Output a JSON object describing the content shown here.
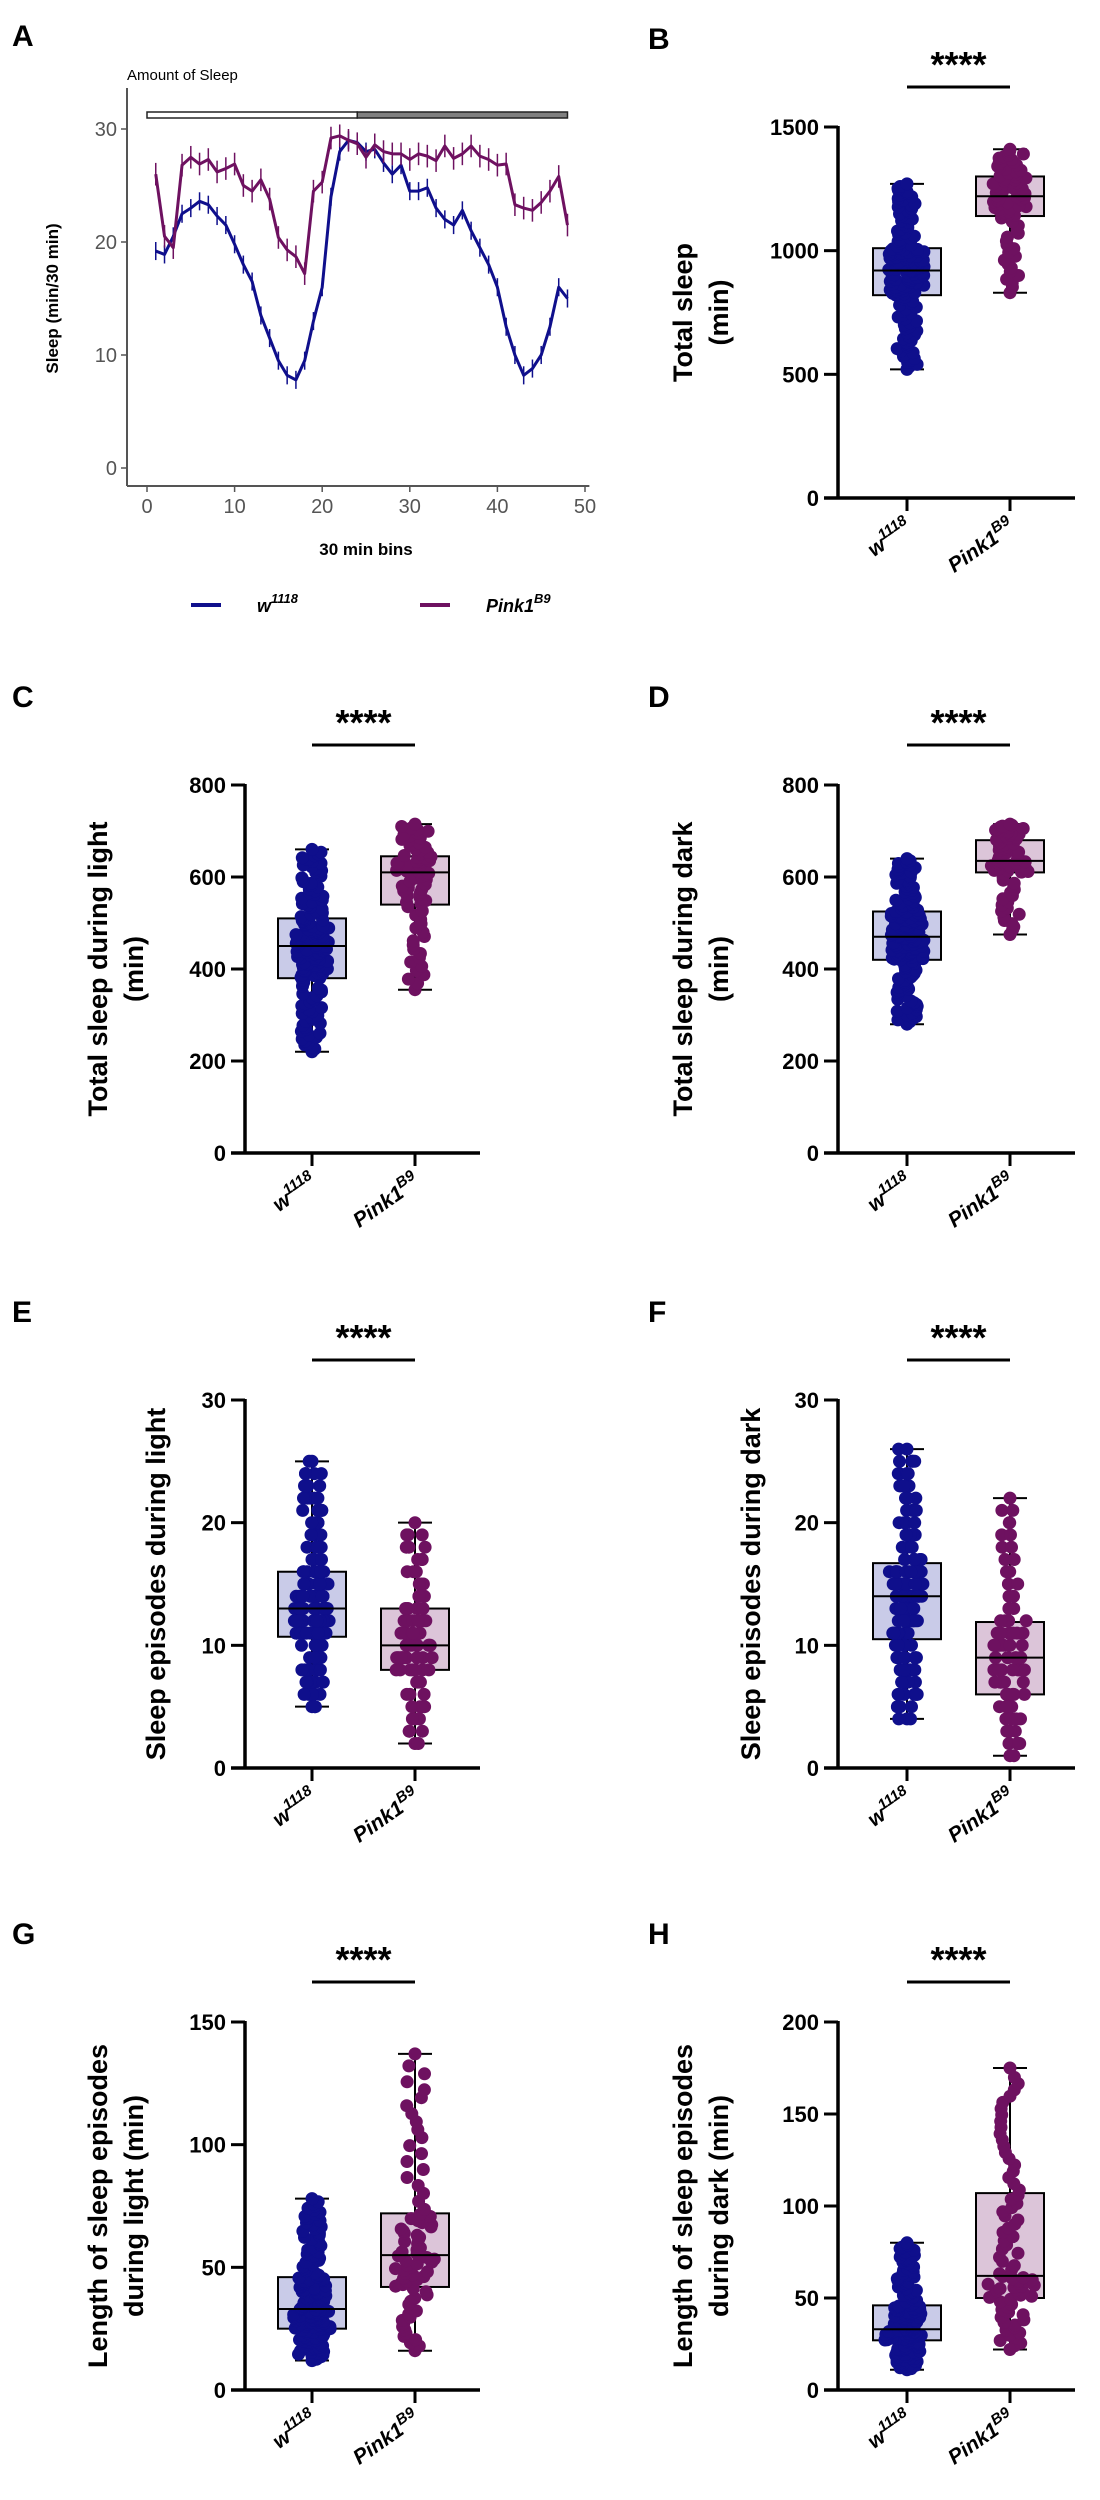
{
  "colors": {
    "w1118": "#0f0f8c",
    "pink1": "#6e1160",
    "w1118_box": "#c9cbe8",
    "pink1_box": "#dcc5d9",
    "axis": "#000000",
    "axisA": "#555555"
  },
  "groups": [
    {
      "key": "w1118",
      "base": "w",
      "sup": "1118"
    },
    {
      "key": "pink1",
      "base": "Pink1",
      "sup": "B9"
    }
  ],
  "chart_data": [
    {
      "panel": "A",
      "type": "line",
      "title": "Amount of Sleep",
      "xlabel": "30 min bins",
      "ylabel": "Sleep (min/30 min)",
      "xlim": [
        0,
        50
      ],
      "ylim": [
        0,
        30
      ],
      "xticks": [
        "0",
        "10",
        "20",
        "30",
        "40",
        "50"
      ],
      "yticks": [
        "0",
        "10",
        "20",
        "30"
      ],
      "light_dark_bar": {
        "light": [
          0,
          24
        ],
        "dark": [
          24,
          48
        ]
      },
      "legend": [
        "w1118",
        "pink1"
      ],
      "series": [
        {
          "name": "w1118",
          "x_start": 1,
          "values": [
            19.2,
            18.9,
            20.5,
            22.5,
            23,
            23.6,
            23.3,
            22.3,
            21.5,
            19.8,
            18,
            16.5,
            13.5,
            11.5,
            9.5,
            8.2,
            7.8,
            9.5,
            13,
            16,
            24,
            28,
            29,
            28.8,
            28,
            28.2,
            27,
            26,
            26.8,
            24.5,
            24.5,
            24.8,
            23,
            22,
            21.5,
            22.8,
            21,
            19.5,
            18,
            16,
            12.5,
            10,
            8.2,
            8.8,
            10,
            12.5,
            16,
            15
          ],
          "error": 0.8
        },
        {
          "name": "pink1",
          "x_start": 1,
          "values": [
            26,
            20.5,
            19.5,
            26.8,
            27.5,
            26.9,
            27.3,
            26.2,
            26.5,
            26.9,
            25,
            24.5,
            25.5,
            23.8,
            20.4,
            19.3,
            18.7,
            17.2,
            24.5,
            25.3,
            29.2,
            29.4,
            29,
            28.7,
            27.5,
            28.6,
            28,
            27.8,
            27.8,
            27.3,
            27.8,
            27.6,
            27.2,
            28.5,
            27.4,
            27.8,
            28.5,
            27.6,
            27.3,
            26.8,
            26.9,
            23.3,
            23,
            22.8,
            23.5,
            24.5,
            25.8,
            21.5
          ],
          "error": 1.0
        }
      ]
    },
    {
      "panel": "B",
      "type": "box",
      "ylabel": [
        "Total sleep",
        "(min)"
      ],
      "ylim": [
        0,
        1500
      ],
      "yticks": [
        "0",
        "500",
        "1000",
        "1500"
      ],
      "significance": "****",
      "integer": false,
      "stats": {
        "w1118": {
          "min": 520,
          "q1": 820,
          "median": 920,
          "q3": 1010,
          "max": 1270,
          "n": 150
        },
        "pink1": {
          "min": 830,
          "q1": 1140,
          "median": 1220,
          "q3": 1300,
          "max": 1410,
          "n": 80
        }
      }
    },
    {
      "panel": "C",
      "type": "box",
      "ylabel": [
        "Total sleep during light",
        "(min)"
      ],
      "ylim": [
        0,
        800
      ],
      "yticks": [
        "0",
        "200",
        "400",
        "600",
        "800"
      ],
      "significance": "****",
      "integer": false,
      "stats": {
        "w1118": {
          "min": 220,
          "q1": 380,
          "median": 450,
          "q3": 510,
          "max": 660,
          "n": 150
        },
        "pink1": {
          "min": 355,
          "q1": 540,
          "median": 610,
          "q3": 645,
          "max": 715,
          "n": 80
        }
      }
    },
    {
      "panel": "D",
      "type": "box",
      "ylabel": [
        "Total sleep during dark",
        "(min)"
      ],
      "ylim": [
        0,
        800
      ],
      "yticks": [
        "0",
        "200",
        "400",
        "600",
        "800"
      ],
      "significance": "****",
      "integer": false,
      "stats": {
        "w1118": {
          "min": 280,
          "q1": 420,
          "median": 470,
          "q3": 525,
          "max": 640,
          "n": 150
        },
        "pink1": {
          "min": 475,
          "q1": 610,
          "median": 635,
          "q3": 680,
          "max": 715,
          "n": 80
        }
      }
    },
    {
      "panel": "E",
      "type": "box",
      "ylabel": [
        "Sleep episodes during light"
      ],
      "ylim": [
        0,
        30
      ],
      "yticks": [
        "0",
        "10",
        "20",
        "30"
      ],
      "significance": "****",
      "integer": true,
      "stats": {
        "w1118": {
          "min": 5,
          "q1": 10.7,
          "median": 13,
          "q3": 16,
          "max": 25,
          "n": 150
        },
        "pink1": {
          "min": 2,
          "q1": 8,
          "median": 10,
          "q3": 13,
          "max": 20,
          "n": 80
        }
      }
    },
    {
      "panel": "F",
      "type": "box",
      "ylabel": [
        "Sleep episodes during dark"
      ],
      "ylim": [
        0,
        30
      ],
      "yticks": [
        "0",
        "10",
        "20",
        "30"
      ],
      "significance": "****",
      "integer": true,
      "stats": {
        "w1118": {
          "min": 4,
          "q1": 10.5,
          "median": 14,
          "q3": 16.7,
          "max": 26,
          "n": 150
        },
        "pink1": {
          "min": 1,
          "q1": 6,
          "median": 9,
          "q3": 11.9,
          "max": 22,
          "n": 80
        }
      }
    },
    {
      "panel": "G",
      "type": "box",
      "ylabel": [
        "Length of sleep episodes",
        "during light (min)"
      ],
      "ylim": [
        0,
        150
      ],
      "yticks": [
        "0",
        "50",
        "100",
        "150"
      ],
      "significance": "****",
      "integer": false,
      "stats": {
        "w1118": {
          "min": 12,
          "q1": 25,
          "median": 33,
          "q3": 46,
          "max": 78,
          "n": 150
        },
        "pink1": {
          "min": 16,
          "q1": 42,
          "median": 55,
          "q3": 72,
          "max": 137,
          "n": 80
        }
      }
    },
    {
      "panel": "H",
      "type": "box",
      "ylabel": [
        "Length of sleep episodes",
        "during dark (min)"
      ],
      "ylim": [
        0,
        200
      ],
      "yticks": [
        "0",
        "50",
        "100",
        "150",
        "200"
      ],
      "significance": "****",
      "integer": false,
      "stats": {
        "w1118": {
          "min": 11,
          "q1": 27,
          "median": 33,
          "q3": 46,
          "max": 80,
          "n": 150
        },
        "pink1": {
          "min": 22,
          "q1": 50,
          "median": 62,
          "q3": 107,
          "max": 175,
          "n": 80
        }
      }
    }
  ]
}
